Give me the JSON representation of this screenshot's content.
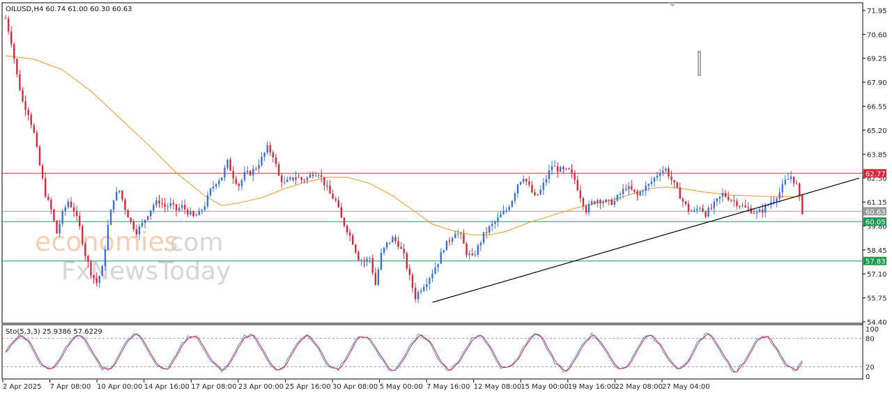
{
  "chart_data": {
    "type": "candlestick",
    "symbol_header": "OILUSD,H4  60.74 61.00 60.30 60.63",
    "ylim": [
      54.4,
      72.3
    ],
    "y_ticks": [
      "71.95",
      "70.60",
      "69.25",
      "67.90",
      "66.55",
      "65.20",
      "63.85",
      "62.50",
      "61.15",
      "59.80",
      "58.45",
      "57.10",
      "55.75",
      "54.40"
    ],
    "x_ticks": [
      "2 Apr 2025",
      "7 Apr 08:00",
      "10 Apr 00:00",
      "14 Apr 16:00",
      "17 Apr 08:00",
      "23 Apr 00:00",
      "25 Apr 16:00",
      "30 Apr 08:00",
      "5 May 00:00",
      "7 May 16:00",
      "12 May 08:00",
      "15 May 00:00",
      "19 May 16:00",
      "22 May 08:00",
      "27 May 04:00"
    ],
    "levels": [
      {
        "value": 62.77,
        "label": "62.77",
        "color": "#d9263b"
      },
      {
        "value": 60.63,
        "label": "60.63",
        "color": "#9a9a9a"
      },
      {
        "value": 60.05,
        "label": "60.05",
        "color": "#1d9a4f"
      },
      {
        "value": 57.83,
        "label": "57.83",
        "color": "#1d9a4f"
      }
    ],
    "price_path": [
      [
        0,
        71.5
      ],
      [
        2,
        70.2
      ],
      [
        4,
        68.3
      ],
      [
        6,
        66.8
      ],
      [
        8,
        66.2
      ],
      [
        10,
        65.0
      ],
      [
        12,
        63.2
      ],
      [
        14,
        61.6
      ],
      [
        16,
        60.7
      ],
      [
        18,
        59.4
      ],
      [
        20,
        60.5
      ],
      [
        22,
        61.2
      ],
      [
        24,
        60.7
      ],
      [
        26,
        59.7
      ],
      [
        28,
        58.2
      ],
      [
        30,
        57.2
      ],
      [
        32,
        56.6
      ],
      [
        34,
        57.4
      ],
      [
        36,
        59.8
      ],
      [
        38,
        61.4
      ],
      [
        40,
        61.8
      ],
      [
        42,
        60.8
      ],
      [
        44,
        60.0
      ],
      [
        46,
        59.5
      ],
      [
        48,
        59.9
      ],
      [
        50,
        60.5
      ],
      [
        52,
        61.0
      ],
      [
        54,
        61.2
      ],
      [
        56,
        60.9
      ],
      [
        58,
        61.0
      ],
      [
        60,
        60.7
      ],
      [
        62,
        60.9
      ],
      [
        64,
        60.6
      ],
      [
        66,
        60.3
      ],
      [
        68,
        60.5
      ],
      [
        70,
        61.0
      ],
      [
        72,
        61.8
      ],
      [
        74,
        62.3
      ],
      [
        76,
        62.6
      ],
      [
        78,
        63.4
      ],
      [
        80,
        62.6
      ],
      [
        82,
        62.1
      ],
      [
        84,
        62.7
      ],
      [
        86,
        62.8
      ],
      [
        88,
        63.1
      ],
      [
        90,
        63.6
      ],
      [
        92,
        64.2
      ],
      [
        94,
        63.8
      ],
      [
        96,
        62.6
      ],
      [
        98,
        62.2
      ],
      [
        100,
        62.4
      ],
      [
        102,
        62.6
      ],
      [
        104,
        62.4
      ],
      [
        106,
        62.5
      ],
      [
        108,
        62.8
      ],
      [
        110,
        62.8
      ],
      [
        112,
        62.2
      ],
      [
        114,
        61.6
      ],
      [
        116,
        61.2
      ],
      [
        118,
        60.2
      ],
      [
        120,
        59.6
      ],
      [
        122,
        58.9
      ],
      [
        124,
        58.0
      ],
      [
        126,
        57.8
      ],
      [
        128,
        58.0
      ],
      [
        130,
        56.5
      ],
      [
        132,
        58.2
      ],
      [
        134,
        58.8
      ],
      [
        136,
        59.1
      ],
      [
        138,
        58.8
      ],
      [
        140,
        58.1
      ],
      [
        142,
        56.9
      ],
      [
        144,
        55.8
      ],
      [
        146,
        56.3
      ],
      [
        148,
        56.7
      ],
      [
        150,
        57.2
      ],
      [
        152,
        57.8
      ],
      [
        154,
        58.6
      ],
      [
        156,
        59.0
      ],
      [
        158,
        59.5
      ],
      [
        160,
        59.2
      ],
      [
        162,
        58.3
      ],
      [
        164,
        58.0
      ],
      [
        166,
        58.6
      ],
      [
        168,
        59.3
      ],
      [
        170,
        59.7
      ],
      [
        172,
        60.0
      ],
      [
        174,
        60.4
      ],
      [
        176,
        60.7
      ],
      [
        178,
        61.3
      ],
      [
        180,
        62.2
      ],
      [
        182,
        62.6
      ],
      [
        184,
        62.0
      ],
      [
        186,
        61.4
      ],
      [
        188,
        61.8
      ],
      [
        190,
        62.5
      ],
      [
        192,
        63.2
      ],
      [
        194,
        63.0
      ],
      [
        196,
        62.9
      ],
      [
        198,
        62.9
      ],
      [
        200,
        62.4
      ],
      [
        202,
        61.5
      ],
      [
        204,
        60.7
      ],
      [
        206,
        61.1
      ],
      [
        208,
        61.3
      ],
      [
        210,
        61.2
      ],
      [
        212,
        61.1
      ],
      [
        214,
        61.2
      ],
      [
        216,
        61.6
      ],
      [
        218,
        62.0
      ],
      [
        220,
        61.8
      ],
      [
        222,
        61.5
      ],
      [
        224,
        61.9
      ],
      [
        226,
        62.1
      ],
      [
        228,
        62.5
      ],
      [
        230,
        62.9
      ],
      [
        232,
        63.0
      ],
      [
        234,
        62.4
      ],
      [
        236,
        61.8
      ],
      [
        238,
        61.2
      ],
      [
        240,
        60.7
      ],
      [
        242,
        60.6
      ],
      [
        244,
        60.9
      ],
      [
        246,
        60.5
      ],
      [
        248,
        60.8
      ],
      [
        250,
        61.2
      ],
      [
        252,
        61.6
      ],
      [
        254,
        61.4
      ],
      [
        256,
        61.2
      ],
      [
        258,
        61.0
      ],
      [
        260,
        60.8
      ],
      [
        262,
        60.7
      ],
      [
        264,
        60.5
      ],
      [
        266,
        60.7
      ],
      [
        268,
        61.0
      ],
      [
        270,
        61.3
      ],
      [
        272,
        61.7
      ],
      [
        274,
        62.3
      ],
      [
        276,
        62.6
      ],
      [
        278,
        62.1
      ],
      [
        280,
        60.63
      ]
    ],
    "ma_path": [
      [
        0,
        69.4
      ],
      [
        10,
        69.2
      ],
      [
        20,
        68.6
      ],
      [
        30,
        67.4
      ],
      [
        40,
        65.9
      ],
      [
        50,
        64.4
      ],
      [
        60,
        62.8
      ],
      [
        70,
        61.5
      ],
      [
        76,
        60.95
      ],
      [
        82,
        61.1
      ],
      [
        90,
        61.4
      ],
      [
        98,
        61.9
      ],
      [
        106,
        62.3
      ],
      [
        114,
        62.55
      ],
      [
        120,
        62.55
      ],
      [
        128,
        62.2
      ],
      [
        136,
        61.5
      ],
      [
        144,
        60.6
      ],
      [
        150,
        59.9
      ],
      [
        158,
        59.5
      ],
      [
        164,
        59.3
      ],
      [
        170,
        59.3
      ],
      [
        176,
        59.5
      ],
      [
        184,
        60.0
      ],
      [
        192,
        60.4
      ],
      [
        200,
        60.8
      ],
      [
        208,
        61.1
      ],
      [
        214,
        61.3
      ],
      [
        220,
        61.6
      ],
      [
        226,
        61.9
      ],
      [
        232,
        62.0
      ],
      [
        238,
        61.9
      ],
      [
        246,
        61.7
      ],
      [
        254,
        61.55
      ],
      [
        262,
        61.5
      ],
      [
        270,
        61.45
      ],
      [
        280,
        61.45
      ]
    ],
    "trendline": {
      "from": [
        150,
        55.5
      ],
      "to": [
        300,
        62.5
      ]
    },
    "stoch": {
      "label": "Sto(5,3,3) 25.9386 57.6229",
      "ylim": [
        0,
        100
      ],
      "ticks": [
        "100",
        "80",
        "20",
        "0"
      ],
      "levels": [
        80,
        20
      ]
    }
  }
}
